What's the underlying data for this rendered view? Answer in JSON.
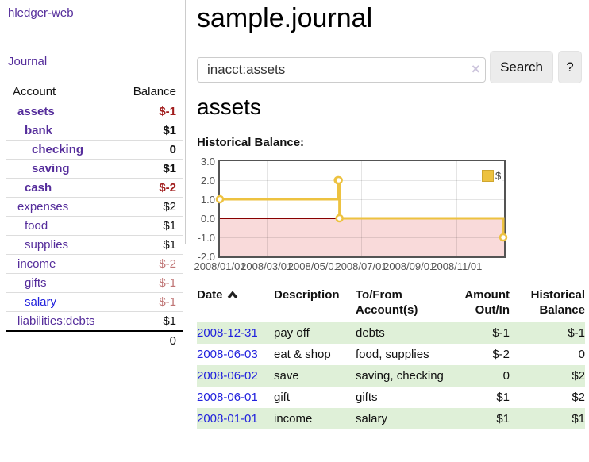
{
  "app": {
    "title": "hledger-web"
  },
  "colors": {
    "link_purple": "#552d9b",
    "link_blue": "#2222dd",
    "negative_strong": "#a11d1d",
    "negative_soft": "#bf7474",
    "row_stripe_green": "#dff0d8",
    "series_gold": "#edc240",
    "negative_region_pink": "#f9dada",
    "zero_line_red": "#880000"
  },
  "sidebar": {
    "journal_label": "Journal",
    "accounts": {
      "header_account": "Account",
      "header_balance": "Balance",
      "rows": [
        {
          "name": "assets",
          "depth": 1,
          "selected": true,
          "balance": "$-1",
          "balance_style": "neg-strong",
          "link_style": "purple"
        },
        {
          "name": "bank",
          "depth": 2,
          "selected": true,
          "balance": "$1",
          "balance_style": "",
          "link_style": "purple"
        },
        {
          "name": "checking",
          "depth": 3,
          "selected": true,
          "balance": "0",
          "balance_style": "",
          "link_style": "purple"
        },
        {
          "name": "saving",
          "depth": 3,
          "selected": true,
          "balance": "$1",
          "balance_style": "",
          "link_style": "purple"
        },
        {
          "name": "cash",
          "depth": 2,
          "selected": true,
          "balance": "$-2",
          "balance_style": "neg-strong",
          "link_style": "purple"
        },
        {
          "name": "expenses",
          "depth": 1,
          "selected": false,
          "balance": "$2",
          "balance_style": "",
          "link_style": "purple"
        },
        {
          "name": "food",
          "depth": 2,
          "selected": false,
          "balance": "$1",
          "balance_style": "",
          "link_style": "purple"
        },
        {
          "name": "supplies",
          "depth": 2,
          "selected": false,
          "balance": "$1",
          "balance_style": "",
          "link_style": "purple"
        },
        {
          "name": "income",
          "depth": 1,
          "selected": false,
          "balance": "$-2",
          "balance_style": "neg-soft",
          "link_style": "purple"
        },
        {
          "name": "gifts",
          "depth": 2,
          "selected": false,
          "balance": "$-1",
          "balance_style": "neg-soft",
          "link_style": "purple"
        },
        {
          "name": "salary",
          "depth": 2,
          "selected": false,
          "balance": "$-1",
          "balance_style": "neg-soft",
          "link_style": "blue"
        },
        {
          "name": "liabilities:debts",
          "depth": 1,
          "selected": false,
          "balance": "$1",
          "balance_style": "",
          "link_style": "purple"
        }
      ],
      "total": "0"
    }
  },
  "main": {
    "title": "sample.journal",
    "search": {
      "value": "inacct:assets",
      "clear_glyph": "×",
      "search_button_label": "Search",
      "help_button_label": "?"
    },
    "account_heading": "assets",
    "chart_label": "Historical Balance:"
  },
  "chart_data": {
    "type": "line",
    "step": true,
    "title": "Historical Balance:",
    "series": [
      {
        "name": "$",
        "color": "#edc240",
        "points": [
          {
            "date": "2008-01-01",
            "value": 1
          },
          {
            "date": "2008-06-01",
            "value": 2
          },
          {
            "date": "2008-06-02",
            "value": 2
          },
          {
            "date": "2008-06-03",
            "value": 0
          },
          {
            "date": "2008-12-31",
            "value": -1
          }
        ],
        "point_days": [
          0,
          152,
          153,
          154,
          365
        ]
      }
    ],
    "legend": {
      "position": "top-right",
      "entries": [
        "$"
      ]
    },
    "y_ticks": [
      "3.0",
      "2.0",
      "1.0",
      "0.0",
      "-1.0",
      "-2.0"
    ],
    "y_tick_values": [
      3,
      2,
      1,
      0,
      -1,
      -2
    ],
    "ylim": [
      -2,
      3
    ],
    "x_ticks": [
      "2008/01/01",
      "2008/03/01",
      "2008/05/01",
      "2008/07/01",
      "2008/09/01",
      "2008/11/01"
    ],
    "x_tick_days": [
      0,
      60,
      121,
      182,
      244,
      305
    ],
    "x_range_days": 366,
    "grid": true,
    "negative_region_shaded": true
  },
  "register": {
    "headers": {
      "date": "Date",
      "description": "Description",
      "accounts": "To/From Account(s)",
      "amount": "Amount Out/In",
      "balance": "Historical Balance"
    },
    "rows": [
      {
        "date": "2008-12-31",
        "description": "pay off",
        "accounts": "debts",
        "amount": "$-1",
        "amount_negative": true,
        "balance": "$-1",
        "balance_negative": true
      },
      {
        "date": "2008-06-03",
        "description": "eat & shop",
        "accounts": "food, supplies",
        "amount": "$-2",
        "amount_negative": true,
        "balance": "0",
        "balance_negative": false
      },
      {
        "date": "2008-06-02",
        "description": "save",
        "accounts": "saving, checking",
        "amount": "0",
        "amount_negative": false,
        "balance": "$2",
        "balance_negative": false
      },
      {
        "date": "2008-06-01",
        "description": "gift",
        "accounts": "gifts",
        "amount": "$1",
        "amount_negative": false,
        "balance": "$2",
        "balance_negative": false
      },
      {
        "date": "2008-01-01",
        "description": "income",
        "accounts": "salary",
        "amount": "$1",
        "amount_negative": false,
        "balance": "$1",
        "balance_negative": false
      }
    ]
  }
}
